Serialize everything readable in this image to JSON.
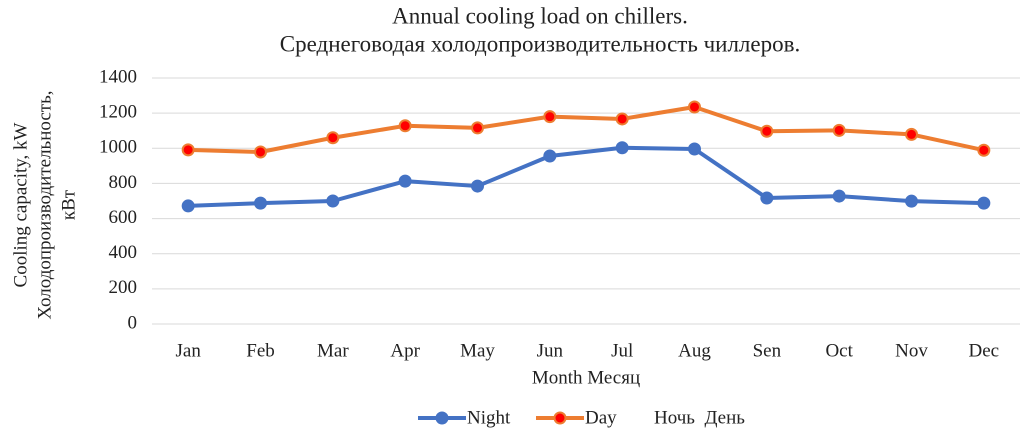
{
  "chart_data": {
    "type": "line",
    "title": [
      "Annual cooling load on chillers.",
      "Среднеговодая холодопроизводительность чиллеров."
    ],
    "y_label": [
      "Cooling capacity, kW",
      "Холодопроизводительность,",
      "кВт"
    ],
    "x_label": "Month Месяц",
    "categories": [
      "Jan",
      "Feb",
      "Mar",
      "Apr",
      "May",
      "Jun",
      "Jul",
      "Aug",
      "Sen",
      "Oct",
      "Nov",
      "Dec"
    ],
    "series": [
      {
        "name": "Night",
        "color": "#4472c4",
        "marker_color": "#4472c4",
        "values": [
          672,
          688,
          700,
          813,
          785,
          956,
          1003,
          996,
          717,
          728,
          699,
          688
        ]
      },
      {
        "name": "Day",
        "color": "#ed7d31",
        "marker_color": "#ff0000",
        "values": [
          991,
          979,
          1060,
          1128,
          1116,
          1180,
          1167,
          1235,
          1097,
          1102,
          1079,
          989
        ]
      }
    ],
    "legend_note": "Ночь  День",
    "ylim": [
      0,
      1400
    ],
    "yticks": [
      0,
      200,
      400,
      600,
      800,
      1000,
      1200,
      1400
    ],
    "grid": true
  }
}
